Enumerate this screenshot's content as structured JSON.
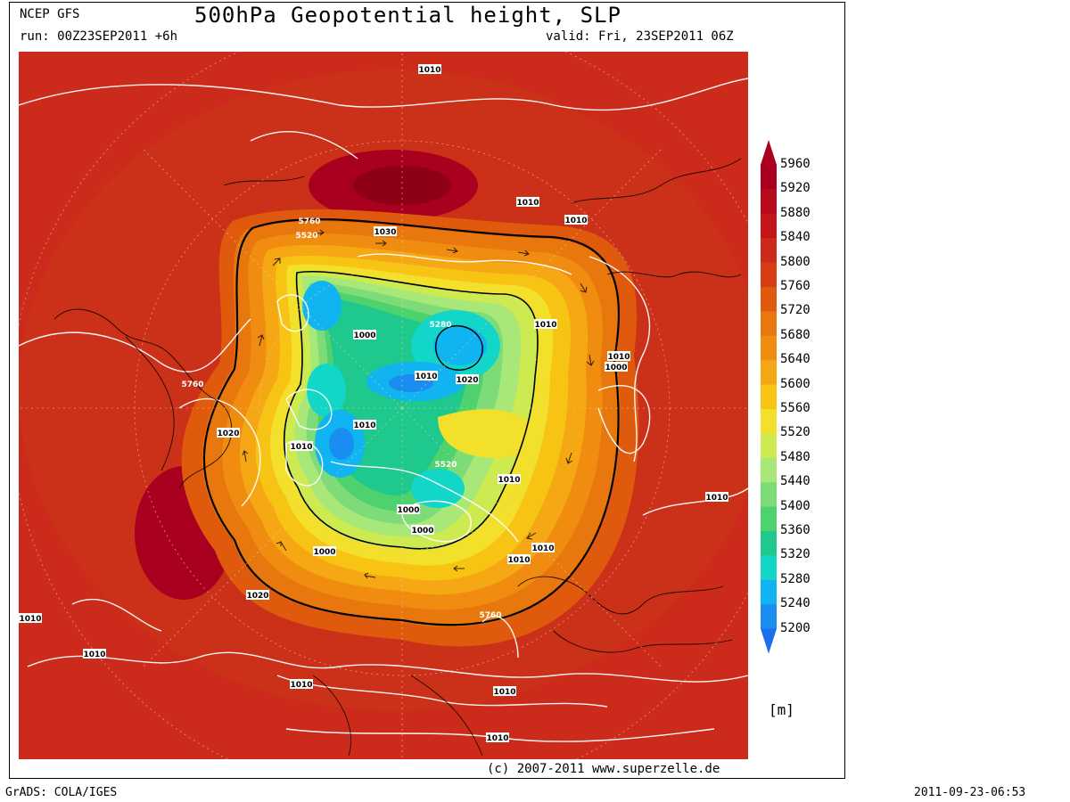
{
  "header": {
    "model": "NCEP GFS",
    "title": "500hPa Geopotential height, SLP",
    "run": "run: 00Z23SEP2011 +6h",
    "valid": "valid: Fri, 23SEP2011 06Z"
  },
  "footer": {
    "copyright": "(c) 2007-2011 www.superzelle.de",
    "software": "GrADS: COLA/IGES",
    "timestamp": "2011-09-23-06:53"
  },
  "colorbar": {
    "unit": "[m]",
    "levels": [
      "5960",
      "5920",
      "5880",
      "5840",
      "5800",
      "5760",
      "5720",
      "5680",
      "5640",
      "5600",
      "5560",
      "5520",
      "5480",
      "5440",
      "5400",
      "5360",
      "5320",
      "5280",
      "5240",
      "5200"
    ],
    "colors": [
      "#a8001e",
      "#b80a1a",
      "#c4161a",
      "#cc2a1a",
      "#d83c14",
      "#e05a0e",
      "#e8780e",
      "#f08c10",
      "#f5a814",
      "#f8c414",
      "#f2e02a",
      "#cdeb50",
      "#a8e878",
      "#7ddc78",
      "#4ed26e",
      "#1fc88c",
      "#12d7c8",
      "#10b4f0",
      "#1a8ef0",
      "#1e6ef0"
    ]
  },
  "map": {
    "contour_labels": [
      {
        "id": "slp-a",
        "text": "1010"
      },
      {
        "id": "slp-b",
        "text": "1030"
      },
      {
        "id": "slp-c",
        "text": "1010"
      },
      {
        "id": "slp-d",
        "text": "1010"
      },
      {
        "id": "slp-e",
        "text": "1000"
      },
      {
        "id": "slp-f",
        "text": "1010"
      },
      {
        "id": "slp-g",
        "text": "1020"
      },
      {
        "id": "slp-h",
        "text": "1010"
      },
      {
        "id": "slp-i",
        "text": "1010"
      },
      {
        "id": "slp-j",
        "text": "1000"
      },
      {
        "id": "slp-k",
        "text": "1020"
      },
      {
        "id": "slp-l",
        "text": "1010"
      },
      {
        "id": "slp-m",
        "text": "1010"
      },
      {
        "id": "slp-n",
        "text": "1000"
      },
      {
        "id": "slp-o",
        "text": "1010"
      },
      {
        "id": "slp-p",
        "text": "1010"
      },
      {
        "id": "slp-q",
        "text": "1000"
      },
      {
        "id": "slp-r",
        "text": "1020"
      },
      {
        "id": "slp-s",
        "text": "1010"
      },
      {
        "id": "slp-t",
        "text": "1010"
      },
      {
        "id": "slp-u",
        "text": "1010"
      },
      {
        "id": "slp-v",
        "text": "1010"
      },
      {
        "id": "slp-w",
        "text": "1010"
      },
      {
        "id": "slp-x",
        "text": "1010"
      },
      {
        "id": "slp-y",
        "text": "1010"
      },
      {
        "id": "slp-z",
        "text": "1000"
      },
      {
        "id": "gph-a",
        "text": "5760"
      },
      {
        "id": "gph-b",
        "text": "5520"
      },
      {
        "id": "gph-c",
        "text": "5280"
      },
      {
        "id": "gph-d",
        "text": "5760"
      },
      {
        "id": "gph-e",
        "text": "5520"
      },
      {
        "id": "gph-f",
        "text": "5760"
      }
    ]
  }
}
